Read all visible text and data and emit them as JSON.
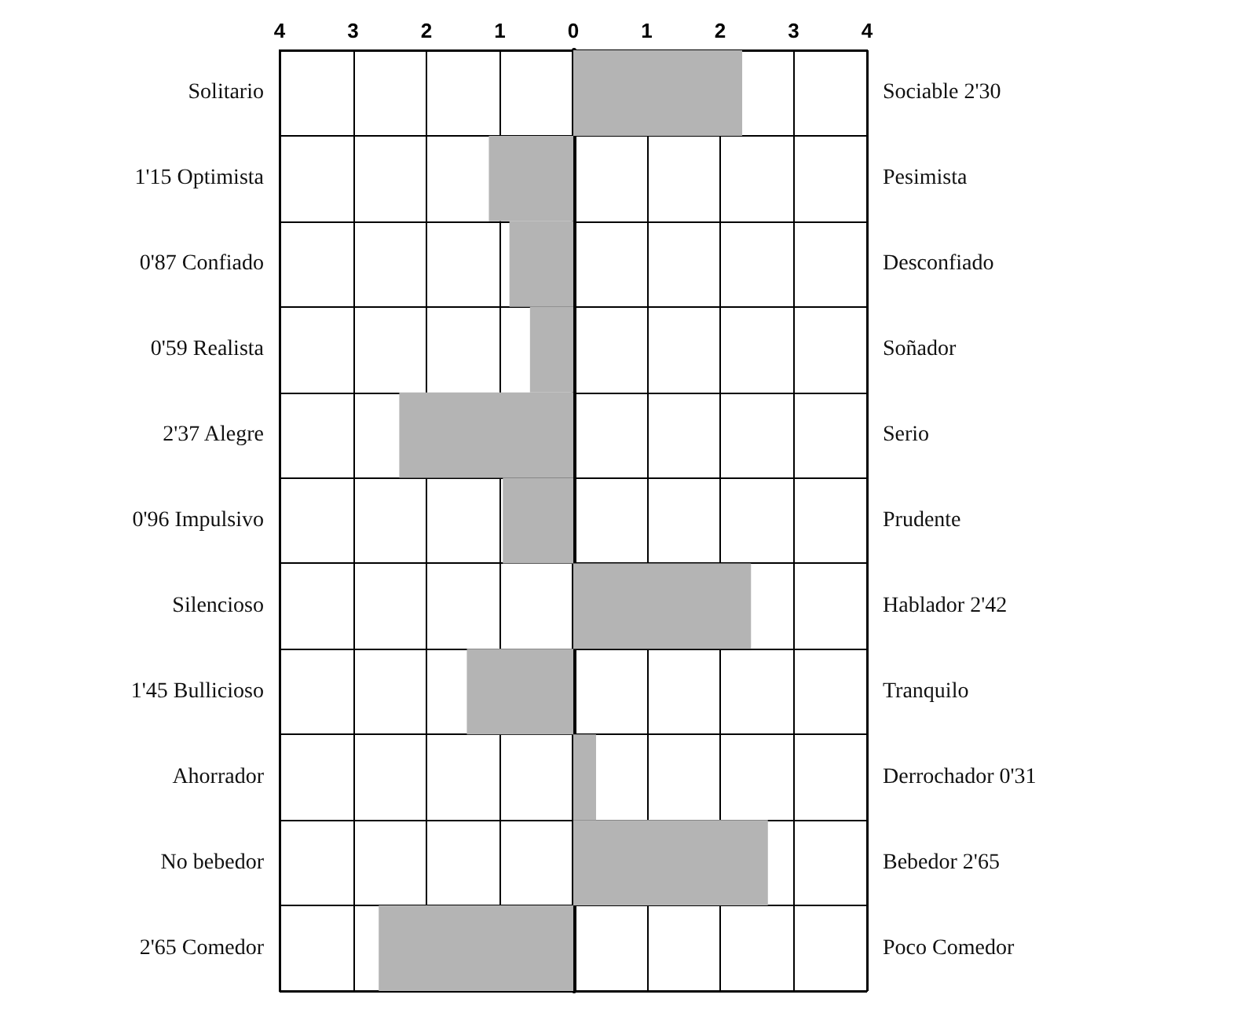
{
  "chart_data": {
    "type": "bar",
    "orientation": "horizontal",
    "color": "#b4b4b4",
    "grid": true,
    "categories": [
      "Solitario",
      "1'15 Optimista",
      "0'87 Confiado",
      "0'59 Realista",
      "2'37 Alegre",
      "0'96 Impulsivo",
      "Silencioso",
      "1'45 Bullicioso",
      "Ahorrador",
      "No bebedor",
      "2'65 Comedor"
    ],
    "y2_categories": [
      "Sociable 2'30",
      "Pesimista",
      "Desconfiado",
      "Soñador",
      "Serio",
      "Prudente",
      "Hablador 2'42",
      "Tranquilo",
      "Derrochador 0'31",
      "Bebedor 2'65",
      "Poco Comedor"
    ],
    "values": [
      2.3,
      -1.15,
      -0.87,
      -0.59,
      -2.37,
      -0.96,
      2.42,
      -1.45,
      0.31,
      2.65,
      -2.65
    ],
    "xlim": [
      -4,
      4
    ],
    "xticks": [
      {
        "value": -4,
        "label": "4"
      },
      {
        "value": -3,
        "label": "3"
      },
      {
        "value": -2,
        "label": "2"
      },
      {
        "value": -1,
        "label": "1"
      },
      0,
      1,
      2,
      3,
      4
    ]
  }
}
